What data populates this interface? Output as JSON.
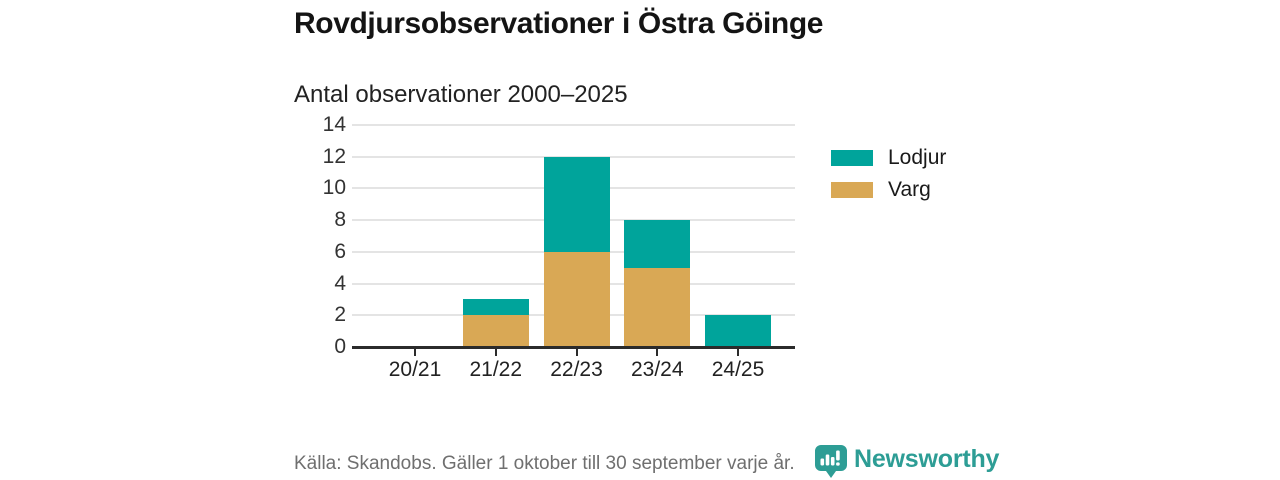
{
  "page": {
    "title": "Rovdjursobservationer i Östra Göinge",
    "subtitle": "Antal observationer 2000–2025",
    "source": "Källa: Skandobs. Gäller 1 oktober till 30 september varje år.",
    "brand": "Newsworthy"
  },
  "colors": {
    "lodjur": "#00a49b",
    "varg": "#d9a855",
    "axis": "#2b2b2b",
    "grid": "#e4e4e4",
    "title_text": "#141414",
    "muted_text": "#6f6f6f",
    "brand_teal": "#2d9d95"
  },
  "legend": {
    "items": [
      {
        "label": "Lodjur",
        "color_key": "lodjur"
      },
      {
        "label": "Varg",
        "color_key": "varg"
      }
    ]
  },
  "chart_data": {
    "type": "bar",
    "stacked": true,
    "title": "Rovdjursobservationer i Östra Göinge",
    "subtitle": "Antal observationer 2000–2025",
    "categories": [
      "20/21",
      "21/22",
      "22/23",
      "23/24",
      "24/25"
    ],
    "series": [
      {
        "name": "Varg",
        "color_key": "varg",
        "values": [
          0,
          2,
          6,
          5,
          0
        ]
      },
      {
        "name": "Lodjur",
        "color_key": "lodjur",
        "values": [
          0,
          1,
          6,
          3,
          2
        ]
      }
    ],
    "totals": [
      0,
      3,
      12,
      8,
      2
    ],
    "xlabel": "",
    "ylabel": "",
    "ylim": [
      0,
      14
    ],
    "yticks": [
      0,
      2,
      4,
      6,
      8,
      10,
      12,
      14
    ],
    "grid": true,
    "legend_position": "right"
  }
}
